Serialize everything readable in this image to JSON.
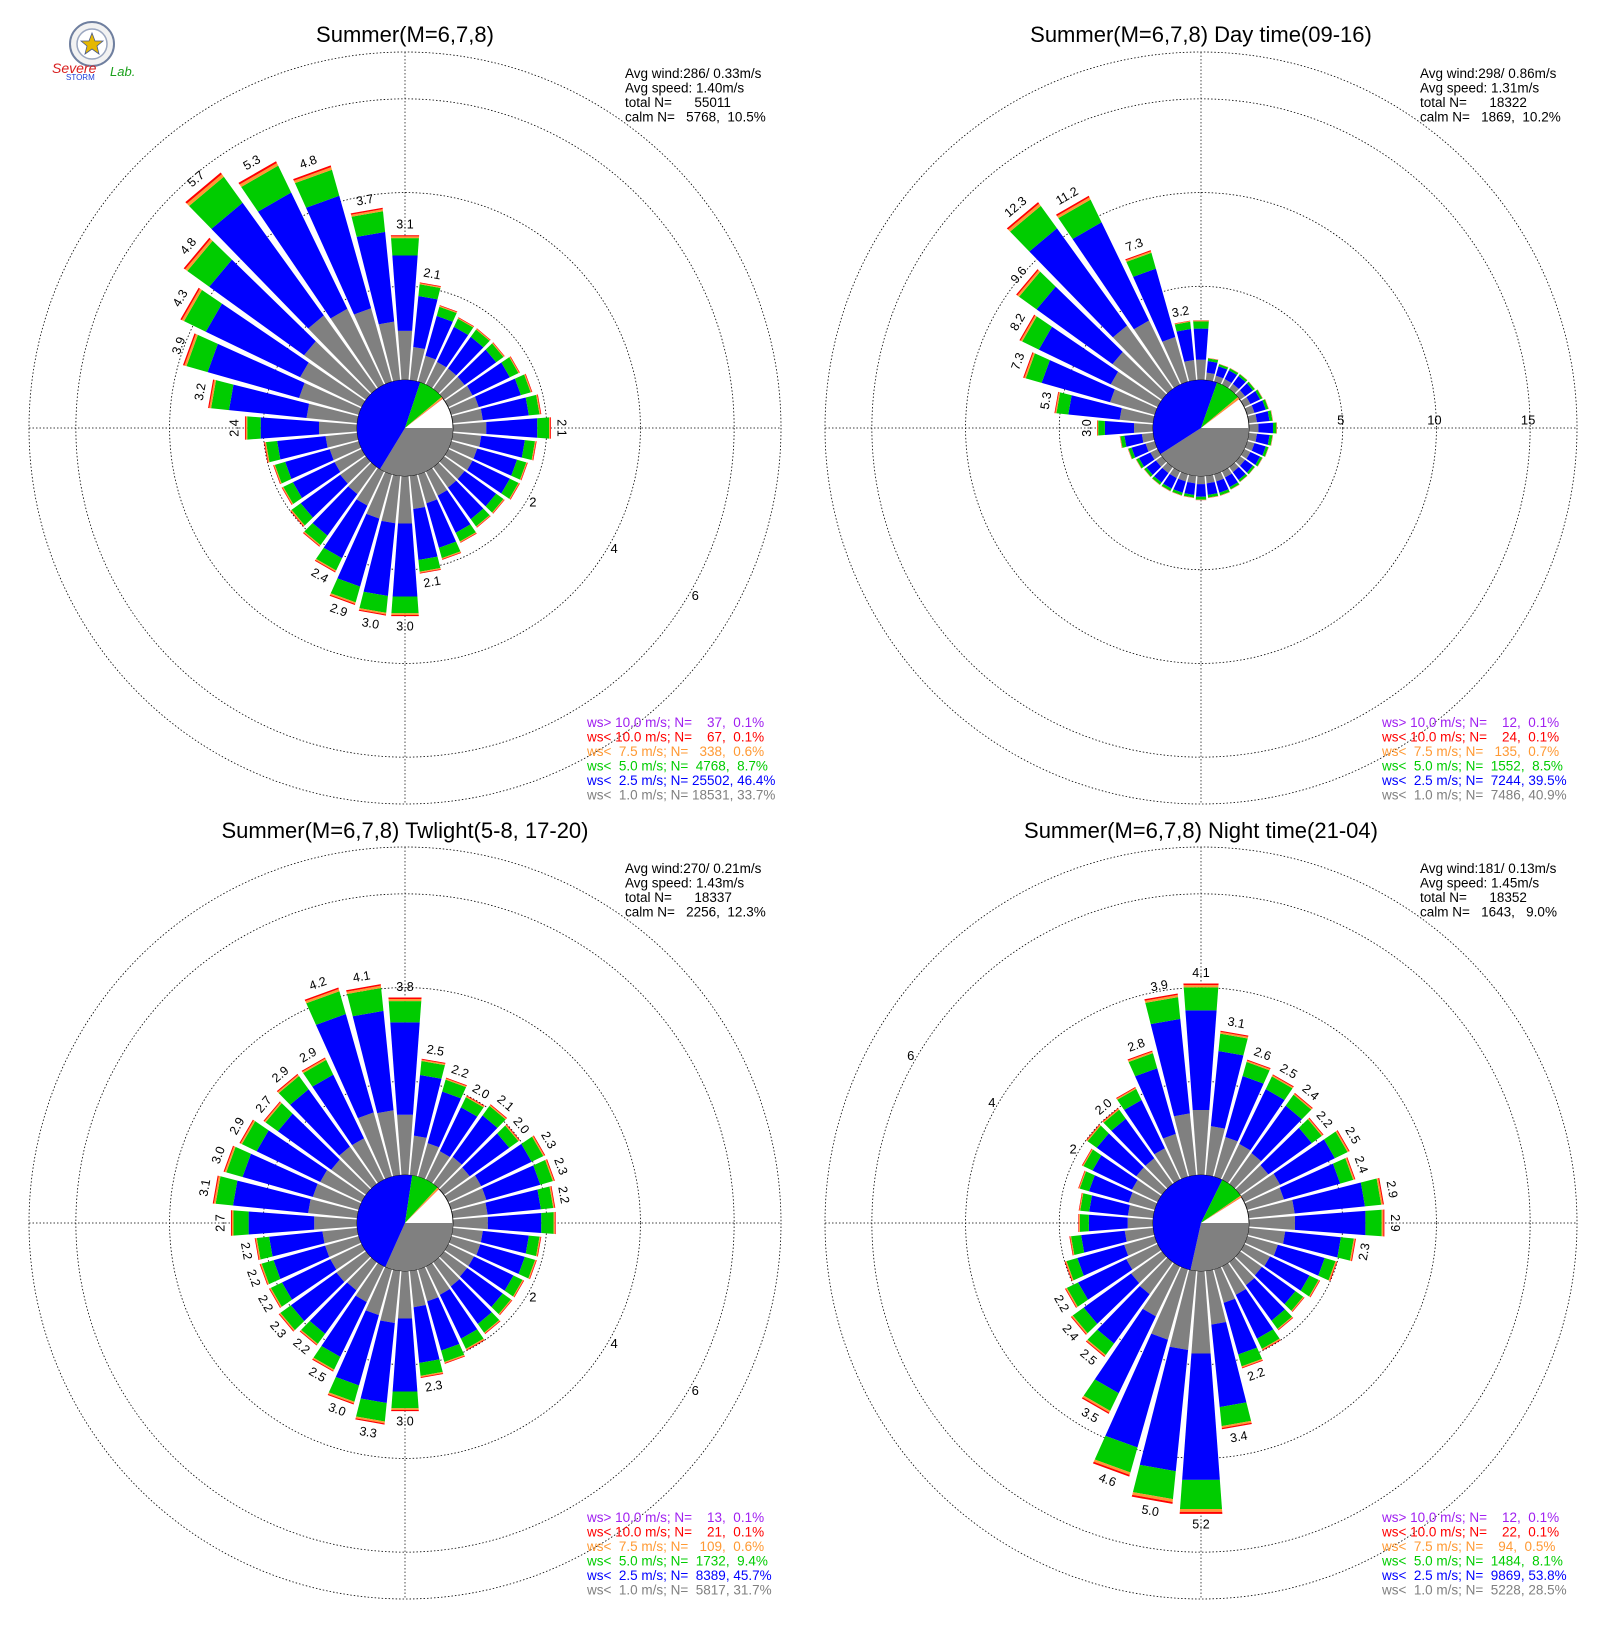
{
  "logo": {
    "text_severe": "Severe",
    "text_storm": "STORM",
    "text_lab": "Lab."
  },
  "colors": {
    "gray": "#808080",
    "blue": "#0000ff",
    "green": "#00cc00",
    "orange": "#ff9933",
    "red": "#ff0000",
    "purple": "#a020f0"
  },
  "chart_data": [
    {
      "type": "windrose",
      "title": "Summer(M=6,7,8)",
      "stats": [
        "Avg wind:286/ 0.33m/s",
        "Avg speed: 1.40m/s",
        "total N=      55011",
        "calm N=   5768,  10.5%"
      ],
      "rmax": 7,
      "rings": [
        2,
        4,
        6
      ],
      "ring_labels": [
        "2",
        "4",
        "6"
      ],
      "ring_label_side": "right",
      "calm_pie": [
        {
          "color": "gray",
          "fraction": 0.337
        },
        {
          "color": "blue",
          "fraction": 0.464
        },
        {
          "color": "green",
          "fraction": 0.087
        },
        {
          "color": "orange",
          "fraction": 0.006
        },
        {
          "color": "red",
          "fraction": 0.001
        }
      ],
      "directions_deg": [
        0,
        10,
        20,
        30,
        40,
        50,
        60,
        70,
        80,
        90,
        100,
        110,
        120,
        130,
        140,
        150,
        160,
        170,
        180,
        190,
        200,
        210,
        220,
        230,
        240,
        250,
        260,
        270,
        280,
        290,
        300,
        310,
        320,
        330,
        340,
        350
      ],
      "totals": [
        3.1,
        2.1,
        1.7,
        1.6,
        1.6,
        1.6,
        1.7,
        1.8,
        1.9,
        2.1,
        1.8,
        1.7,
        1.7,
        1.6,
        1.6,
        1.7,
        1.9,
        2.1,
        3.0,
        3.0,
        2.9,
        2.4,
        2.1,
        2.0,
        1.9,
        1.9,
        2.0,
        2.4,
        3.2,
        3.9,
        4.3,
        4.8,
        5.7,
        5.3,
        4.8,
        3.7
      ],
      "labels": {
        "0": "3.1",
        "10": "2.1",
        "90": "2.1",
        "170": "2.1",
        "180": "3.0",
        "190": "3.0",
        "200": "2.9",
        "210": "2.4",
        "270": "2.4",
        "280": "3.2",
        "290": "3.9",
        "300": "4.3",
        "310": "4.8",
        "320": "5.7",
        "330": "5.3",
        "340": "4.8",
        "350": "3.7"
      },
      "legend": [
        {
          "text": "ws> 10.0 m/s; N=    37,  0.1%",
          "color": "purple"
        },
        {
          "text": "ws< 10.0 m/s; N=    67,  0.1%",
          "color": "red"
        },
        {
          "text": "ws<  7.5 m/s; N=   338,  0.6%",
          "color": "orange"
        },
        {
          "text": "ws<  5.0 m/s; N=  4768,  8.7%",
          "color": "green"
        },
        {
          "text": "ws<  2.5 m/s; N= 25502, 46.4%",
          "color": "blue"
        },
        {
          "text": "ws<  1.0 m/s; N= 18531, 33.7%",
          "color": "gray"
        }
      ]
    },
    {
      "type": "windrose",
      "title": "Summer(M=6,7,8) Day time(09-16)",
      "stats": [
        "Avg wind:298/ 0.86m/s",
        "Avg speed: 1.31m/s",
        "total N=      18322",
        "calm N=   1869,  10.2%"
      ],
      "rmax": 17.5,
      "rings": [
        5,
        10,
        15
      ],
      "ring_labels": [
        "5",
        "10",
        "15"
      ],
      "ring_label_side": "east",
      "calm_pie": [
        {
          "color": "gray",
          "fraction": 0.409
        },
        {
          "color": "blue",
          "fraction": 0.395
        },
        {
          "color": "green",
          "fraction": 0.085
        },
        {
          "color": "orange",
          "fraction": 0.007
        },
        {
          "color": "red",
          "fraction": 0.001
        }
      ],
      "directions_deg": [
        0,
        10,
        20,
        30,
        40,
        50,
        60,
        70,
        80,
        90,
        100,
        110,
        120,
        130,
        140,
        150,
        160,
        170,
        180,
        190,
        200,
        210,
        220,
        230,
        240,
        250,
        260,
        270,
        280,
        290,
        300,
        310,
        320,
        330,
        340,
        350
      ],
      "totals": [
        3.2,
        1.2,
        1.0,
        1.0,
        1.0,
        1.0,
        1.1,
        1.2,
        1.3,
        1.5,
        1.3,
        1.2,
        1.1,
        1.0,
        1.0,
        1.1,
        1.2,
        1.2,
        1.3,
        1.2,
        1.2,
        1.2,
        1.2,
        1.2,
        1.3,
        1.5,
        1.8,
        3.0,
        5.3,
        7.3,
        8.2,
        9.6,
        12.3,
        11.2,
        7.3,
        3.2
      ],
      "labels": {
        "270": "3.0",
        "280": "5.3",
        "290": "7.3",
        "300": "8.2",
        "310": "9.6",
        "320": "12.3",
        "330": "11.2",
        "340": "7.3",
        "350": "3.2"
      },
      "legend": [
        {
          "text": "ws> 10.0 m/s; N=    12,  0.1%",
          "color": "purple"
        },
        {
          "text": "ws< 10.0 m/s; N=    24,  0.1%",
          "color": "red"
        },
        {
          "text": "ws<  7.5 m/s; N=   135,  0.7%",
          "color": "orange"
        },
        {
          "text": "ws<  5.0 m/s; N=  1552,  8.5%",
          "color": "green"
        },
        {
          "text": "ws<  2.5 m/s; N=  7244, 39.5%",
          "color": "blue"
        },
        {
          "text": "ws<  1.0 m/s; N=  7486, 40.9%",
          "color": "gray"
        }
      ]
    },
    {
      "type": "windrose",
      "title": "Summer(M=6,7,8) Twlight(5-8, 17-20)",
      "stats": [
        "Avg wind:270/ 0.21m/s",
        "Avg speed: 1.43m/s",
        "total N=      18337",
        "calm N=   2256,  12.3%"
      ],
      "rmax": 7,
      "rings": [
        2,
        4,
        6
      ],
      "ring_labels": [
        "2",
        "4",
        "6"
      ],
      "ring_label_side": "right",
      "calm_pie": [
        {
          "color": "gray",
          "fraction": 0.317
        },
        {
          "color": "blue",
          "fraction": 0.457
        },
        {
          "color": "green",
          "fraction": 0.094
        },
        {
          "color": "orange",
          "fraction": 0.006
        },
        {
          "color": "red",
          "fraction": 0.001
        }
      ],
      "directions_deg": [
        0,
        10,
        20,
        30,
        40,
        50,
        60,
        70,
        80,
        90,
        100,
        110,
        120,
        130,
        140,
        150,
        160,
        170,
        180,
        190,
        200,
        210,
        220,
        230,
        240,
        250,
        260,
        270,
        280,
        290,
        300,
        310,
        320,
        330,
        340,
        350
      ],
      "totals": [
        3.8,
        2.5,
        2.2,
        2.0,
        2.1,
        2.0,
        2.3,
        2.3,
        2.2,
        2.2,
        1.9,
        1.9,
        1.8,
        1.8,
        1.9,
        2.0,
        2.1,
        2.3,
        3.0,
        3.3,
        3.0,
        2.5,
        2.2,
        2.3,
        2.2,
        2.2,
        2.2,
        2.7,
        3.1,
        3.0,
        2.9,
        2.7,
        2.9,
        2.9,
        4.2,
        4.1
      ],
      "labels": {
        "0": "3.8",
        "10": "2.5",
        "20": "2.2",
        "30": "2.0",
        "40": "2.1",
        "50": "2.0",
        "60": "2.3",
        "70": "2.3",
        "80": "2.2",
        "170": "2.3",
        "180": "3.0",
        "190": "3.3",
        "200": "3.0",
        "210": "2.5",
        "220": "2.2",
        "230": "2.3",
        "240": "2.2",
        "250": "2.2",
        "260": "2.2",
        "270": "2.7",
        "280": "3.1",
        "290": "3.0",
        "300": "2.9",
        "310": "2.7",
        "320": "2.9",
        "330": "2.9",
        "340": "4.2",
        "350": "4.1"
      },
      "legend": [
        {
          "text": "ws> 10.0 m/s; N=    13,  0.1%",
          "color": "purple"
        },
        {
          "text": "ws< 10.0 m/s; N=    21,  0.1%",
          "color": "red"
        },
        {
          "text": "ws<  7.5 m/s; N=   109,  0.6%",
          "color": "orange"
        },
        {
          "text": "ws<  5.0 m/s; N=  1732,  9.4%",
          "color": "green"
        },
        {
          "text": "ws<  2.5 m/s; N=  8389, 45.7%",
          "color": "blue"
        },
        {
          "text": "ws<  1.0 m/s; N=  5817, 31.7%",
          "color": "gray"
        }
      ]
    },
    {
      "type": "windrose",
      "title": "Summer(M=6,7,8) Night time(21-04)",
      "stats": [
        "Avg wind:181/ 0.13m/s",
        "Avg speed: 1.45m/s",
        "total N=      18352",
        "calm N=   1643,   9.0%"
      ],
      "rmax": 7,
      "rings": [
        2,
        4,
        6
      ],
      "ring_labels": [
        "2",
        "4",
        "6"
      ],
      "ring_label_side": "left",
      "calm_pie": [
        {
          "color": "gray",
          "fraction": 0.285
        },
        {
          "color": "blue",
          "fraction": 0.538
        },
        {
          "color": "green",
          "fraction": 0.081
        },
        {
          "color": "orange",
          "fraction": 0.005
        },
        {
          "color": "red",
          "fraction": 0.001
        }
      ],
      "directions_deg": [
        0,
        10,
        20,
        30,
        40,
        50,
        60,
        70,
        80,
        90,
        100,
        110,
        120,
        130,
        140,
        150,
        160,
        170,
        180,
        190,
        200,
        210,
        220,
        230,
        240,
        250,
        260,
        270,
        280,
        290,
        300,
        310,
        320,
        330,
        340,
        350
      ],
      "totals": [
        4.1,
        3.1,
        2.6,
        2.5,
        2.4,
        2.2,
        2.5,
        2.4,
        2.9,
        2.9,
        2.3,
        2.0,
        1.8,
        1.7,
        1.8,
        2.0,
        2.2,
        3.4,
        5.2,
        5.0,
        4.6,
        3.5,
        2.5,
        2.4,
        2.2,
        2.0,
        1.8,
        1.6,
        1.6,
        1.7,
        1.8,
        2.0,
        2.0,
        2.2,
        2.8,
        3.9
      ],
      "labels": {
        "0": "4.1",
        "10": "3.1",
        "20": "2.6",
        "30": "2.5",
        "40": "2.4",
        "50": "2.2",
        "60": "2.5",
        "70": "2.4",
        "80": "2.9",
        "90": "2.9",
        "100": "2.3",
        "160": "2.2",
        "170": "3.4",
        "180": "5.2",
        "190": "5.0",
        "200": "4.6",
        "210": "3.5",
        "220": "2.5",
        "230": "2.4",
        "240": "2.2",
        "320": "2.0",
        "340": "2.8",
        "350": "3.9"
      },
      "legend": [
        {
          "text": "ws> 10.0 m/s; N=    12,  0.1%",
          "color": "purple"
        },
        {
          "text": "ws< 10.0 m/s; N=    22,  0.1%",
          "color": "red"
        },
        {
          "text": "ws<  7.5 m/s; N=    94,  0.5%",
          "color": "orange"
        },
        {
          "text": "ws<  5.0 m/s; N=  1484,  8.1%",
          "color": "green"
        },
        {
          "text": "ws<  2.5 m/s; N=  9869, 53.8%",
          "color": "blue"
        },
        {
          "text": "ws<  1.0 m/s; N=  5228, 28.5%",
          "color": "gray"
        }
      ]
    }
  ]
}
